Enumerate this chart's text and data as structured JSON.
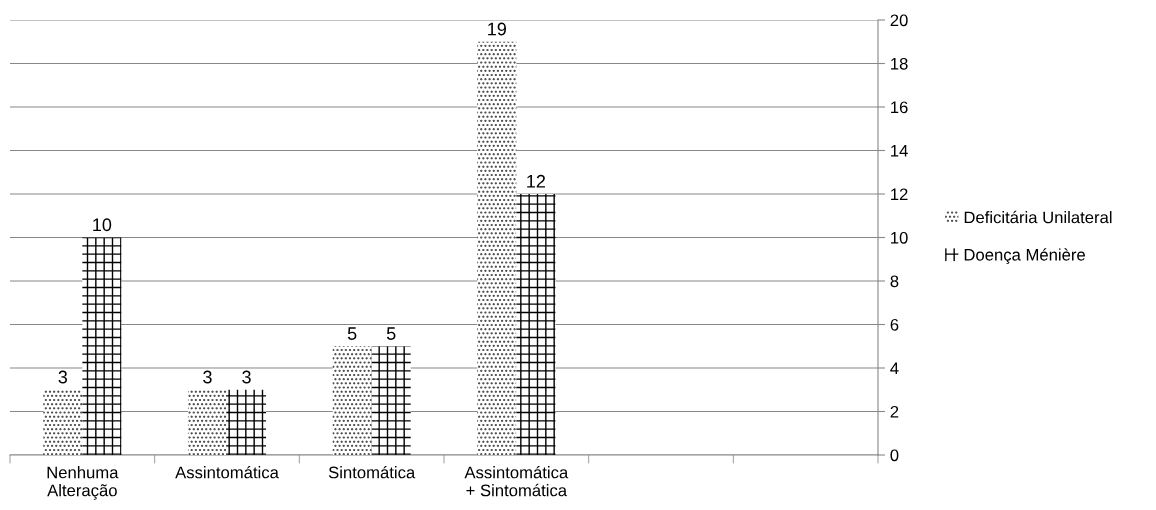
{
  "chart_data": {
    "type": "bar",
    "categories": [
      "Nenhuma\nAlteração",
      "Assintomática",
      "Sintomática",
      "Assintomática\n+ Sintomática",
      null,
      null
    ],
    "series": [
      {
        "name": "Deficitária Unilateral",
        "color": "#404040",
        "values": [
          3,
          3,
          5,
          19,
          null,
          null
        ]
      },
      {
        "name": "Doença Ménière",
        "color": "#000000",
        "values": [
          10,
          3,
          5,
          12,
          null,
          null
        ]
      }
    ],
    "ylim": [
      0,
      20
    ],
    "yticks": [
      0,
      2,
      4,
      6,
      8,
      10,
      12,
      14,
      16,
      18,
      20
    ],
    "grid": "y",
    "legend": "right",
    "data_labels": true
  }
}
